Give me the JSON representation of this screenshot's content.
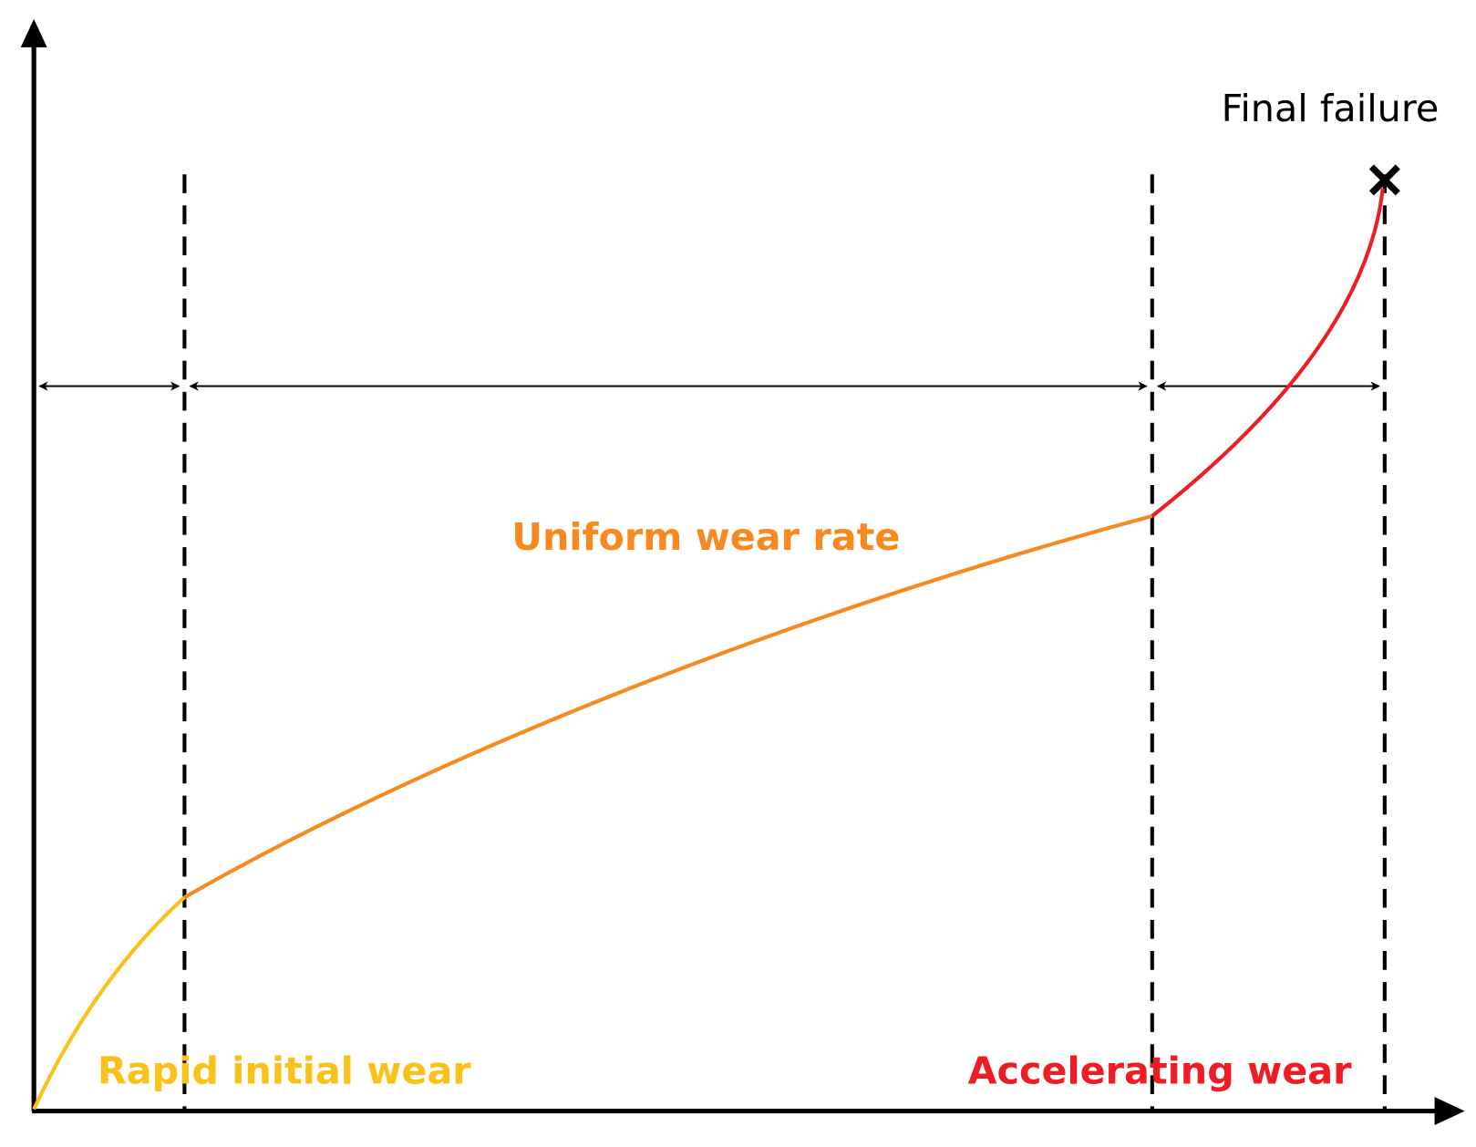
{
  "labels": {
    "final_failure": "Final failure",
    "uniform": "Uniform wear rate",
    "rapid": "Rapid initial wear",
    "accelerating": "Accelerating wear"
  }
}
